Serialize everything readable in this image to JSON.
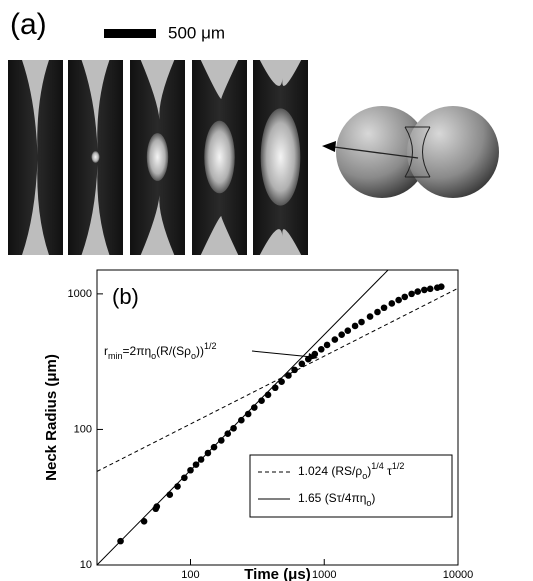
{
  "panel_a": {
    "label": "(a)",
    "scale_bar_label": "500 μm"
  },
  "chart_data": {
    "type": "scatter",
    "panel_label": "(b)",
    "x_label": "Time (μs)",
    "y_label": "Neck Radius (μm)",
    "log_x": true,
    "log_y": true,
    "xlim": [
      20,
      10000
    ],
    "ylim": [
      10,
      1500
    ],
    "xticks": [
      100,
      1000,
      10000
    ],
    "yticks": [
      10,
      100,
      1000
    ],
    "annotation": [
      "r",
      "min",
      "=2πη",
      "o",
      "(R/(Sρ",
      "o",
      "))",
      "1/2"
    ],
    "series": [
      {
        "style": "points",
        "color": "#000000",
        "x": [
          30,
          45,
          55,
          56,
          70,
          80,
          90,
          100,
          110,
          120,
          135,
          150,
          170,
          190,
          210,
          240,
          270,
          300,
          340,
          380,
          430,
          480,
          540,
          600,
          680,
          760,
          850,
          950,
          1050,
          1200,
          1350,
          1500,
          1700,
          1900,
          2200,
          2500,
          2800,
          3200,
          3600,
          4000,
          4500,
          5000,
          5600,
          6200,
          7000,
          7500
        ],
        "values": [
          15,
          21,
          26,
          27,
          33,
          38,
          44,
          50,
          55,
          60,
          67,
          74,
          83,
          93,
          102,
          117,
          130,
          145,
          163,
          180,
          203,
          225,
          250,
          275,
          305,
          330,
          360,
          390,
          420,
          460,
          500,
          535,
          580,
          620,
          680,
          735,
          790,
          850,
          900,
          950,
          1000,
          1040,
          1070,
          1090,
          1110,
          1130
        ]
      },
      {
        "style": "dashed",
        "color": "#000000",
        "name": [
          "1.024 (RS/ρ",
          "o",
          ")",
          "1/4",
          " τ",
          "1/2"
        ],
        "x": [
          20,
          10000
        ],
        "values": [
          49,
          1100
        ]
      },
      {
        "style": "solid",
        "color": "#000000",
        "name": [
          "1.65 (Sτ/4πη",
          "o",
          ")"
        ],
        "x": [
          20,
          3000
        ],
        "values": [
          10,
          1500
        ]
      }
    ]
  }
}
